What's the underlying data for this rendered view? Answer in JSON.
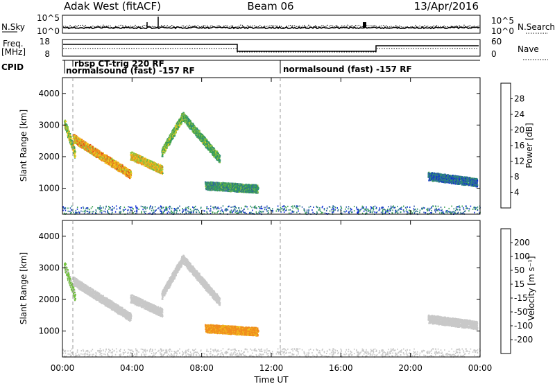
{
  "header": {
    "title": "Adak West (fitACF)",
    "beam": "Beam 06",
    "date": "13/Apr/2016"
  },
  "noise_panel": {
    "left_label": "N.Sky",
    "right_label": "N.Search",
    "left_ticks": [
      "10^5",
      "10^0"
    ],
    "right_ticks": [
      "10^5",
      "10^0"
    ]
  },
  "freq_panel": {
    "left_label_top": "Freq.",
    "left_label_bottom": "[MHz]",
    "right_label": "Nave",
    "left_ticks": [
      "18",
      "8"
    ],
    "right_ticks": [
      "60",
      "0"
    ]
  },
  "cpid_panel": {
    "label": "CPID",
    "entries": [
      {
        "start_h": 0.0,
        "text": "normalsound (fast) -157 RF"
      },
      {
        "start_h": 0.55,
        "text": "rbsp CT-trig 220 RF"
      },
      {
        "start_h": 12.5,
        "text": "normalsound (fast) -157 RF"
      }
    ]
  },
  "colors": {
    "power_scale": [
      "#0b2bd6",
      "#2e5aa8",
      "#2d8c7a",
      "#3aa050",
      "#8ec63f",
      "#f0c81e",
      "#f08c1e",
      "#e24a1a",
      "#d80f0f"
    ],
    "velocity_scale": [
      "#d80f0f",
      "#e8501a",
      "#f08c1e",
      "#f0c81e",
      "#c8c8c8",
      "#c8c8c8",
      "#70c23a",
      "#2e8c5a",
      "#2a4aa8",
      "#1a1ad0"
    ]
  },
  "chart_data": {
    "type": "heatmap",
    "xlabel": "Time UT",
    "ylabel": "Slant Range [km]",
    "x_ticks": [
      "00:00",
      "04:00",
      "08:00",
      "12:00",
      "16:00",
      "20:00",
      "00:00"
    ],
    "xlim_hours": [
      0,
      24
    ],
    "ylim_km": [
      180,
      4500
    ],
    "y_ticks": [
      "1000",
      "2000",
      "3000",
      "4000"
    ],
    "power": {
      "colorbar_label": "Power [dB]",
      "colorbar_ticks": [
        "4",
        "8",
        "12",
        "16",
        "20",
        "24",
        "28"
      ],
      "range": [
        0,
        30
      ]
    },
    "velocity": {
      "colorbar_label": "Velocity [m s⁻¹]",
      "colorbar_ticks": [
        "200",
        "100",
        "50",
        "15",
        "-15",
        "-50",
        "-100",
        "-200"
      ],
      "range": [
        -250,
        250
      ]
    },
    "features": [
      {
        "name": "early-tail",
        "t_start": 0.1,
        "t_end": 0.7,
        "range_start_km": 3100,
        "range_end_km": 2100,
        "power_db": 16,
        "velocity_ms": 60
      },
      {
        "name": "arc-1",
        "t_start": 0.6,
        "t_end": 3.9,
        "range_start_km": 2600,
        "range_end_km": 1450,
        "power_db": 20,
        "velocity_ms": 0
      },
      {
        "name": "arc-2",
        "t_start": 3.9,
        "t_end": 5.7,
        "range_start_km": 2050,
        "range_end_km": 1600,
        "power_db": 18,
        "velocity_ms": 0
      },
      {
        "name": "arc-3",
        "t_start": 5.7,
        "t_end": 6.9,
        "range_start_km": 2150,
        "range_end_km": 3300,
        "power_db": 14,
        "velocity_ms": 0
      },
      {
        "name": "arc-4",
        "t_start": 6.9,
        "t_end": 9.0,
        "range_start_km": 3300,
        "range_end_km": 1950,
        "power_db": 12,
        "velocity_ms": 0
      },
      {
        "name": "late-band",
        "t_start": 8.2,
        "t_end": 11.2,
        "range_start_km": 1100,
        "range_end_km": 1000,
        "power_db": 10,
        "velocity_ms": -110
      },
      {
        "name": "evening-band",
        "t_start": 21.0,
        "t_end": 23.8,
        "range_start_km": 1400,
        "range_end_km": 1200,
        "power_db": 6,
        "velocity_ms": 0
      }
    ]
  }
}
